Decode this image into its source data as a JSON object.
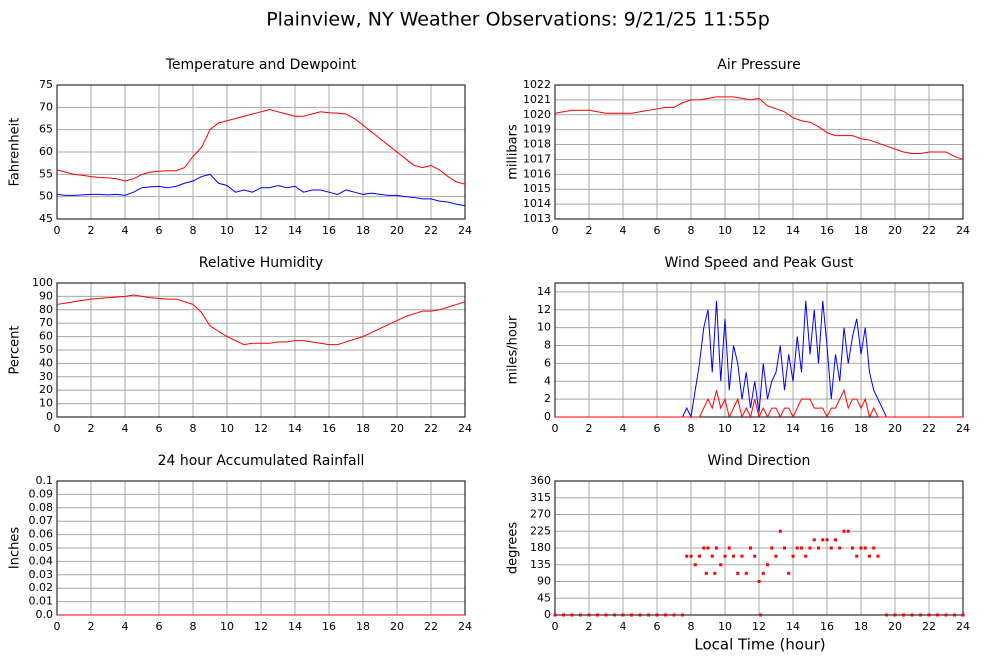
{
  "title": "Plainview, NY Weather Observations: 9/21/25 11:55p",
  "x_label": "Local Time (hour)",
  "chart_data": [
    {
      "type": "line",
      "title": "Temperature and Dewpoint",
      "y_label": "Fahrenheit",
      "x": [
        0,
        0.5,
        1,
        1.5,
        2,
        2.5,
        3,
        3.5,
        4,
        4.5,
        5,
        5.5,
        6,
        6.5,
        7,
        7.5,
        8,
        8.5,
        9,
        9.5,
        10,
        10.5,
        11,
        11.5,
        12,
        12.5,
        13,
        13.5,
        14,
        14.5,
        15,
        15.5,
        16,
        16.5,
        17,
        17.5,
        18,
        18.5,
        19,
        19.5,
        20,
        20.5,
        21,
        21.5,
        22,
        22.5,
        23,
        23.5,
        24
      ],
      "series": [
        {
          "color": "#ff0000",
          "values": [
            56,
            55.5,
            55,
            54.8,
            54.5,
            54.3,
            54.2,
            54,
            53.5,
            54,
            55,
            55.5,
            55.7,
            55.8,
            55.8,
            56.5,
            59,
            61,
            65,
            66.5,
            67,
            67.5,
            68,
            68.5,
            69,
            69.5,
            69,
            68.5,
            68,
            68,
            68.5,
            69,
            68.8,
            68.7,
            68.5,
            67.5,
            66,
            64.5,
            63,
            61.5,
            60,
            58.5,
            57,
            56.5,
            57,
            56,
            54.5,
            53.3,
            52.8
          ]
        },
        {
          "color": "#0000ff",
          "values": [
            50.5,
            50.3,
            50.3,
            50.4,
            50.5,
            50.5,
            50.4,
            50.5,
            50.3,
            51,
            52,
            52.2,
            52.3,
            52,
            52.3,
            53,
            53.5,
            54.5,
            55,
            53,
            52.5,
            51,
            51.5,
            51,
            52,
            52,
            52.5,
            52,
            52.3,
            51,
            51.5,
            51.5,
            51,
            50.5,
            51.5,
            51,
            50.5,
            50.8,
            50.5,
            50.3,
            50.3,
            50,
            49.8,
            49.5,
            49.5,
            49,
            48.8,
            48.3,
            48
          ]
        }
      ],
      "xlim": [
        0,
        24
      ],
      "xticks": [
        0,
        2,
        4,
        6,
        8,
        10,
        12,
        14,
        16,
        18,
        20,
        22,
        24
      ],
      "ylim": [
        45,
        75
      ],
      "yticks": [
        45,
        50,
        55,
        60,
        65,
        70,
        75
      ],
      "grid": true
    },
    {
      "type": "line",
      "title": "Air Pressure",
      "y_label": "millibars",
      "x": [
        0,
        0.5,
        1,
        1.5,
        2,
        2.5,
        3,
        3.5,
        4,
        4.5,
        5,
        5.5,
        6,
        6.5,
        7,
        7.5,
        8,
        8.5,
        9,
        9.5,
        10,
        10.5,
        11,
        11.5,
        12,
        12.5,
        13,
        13.5,
        14,
        14.5,
        15,
        15.5,
        16,
        16.5,
        17,
        17.5,
        18,
        18.5,
        19,
        19.5,
        20,
        20.5,
        21,
        21.5,
        22,
        22.5,
        23,
        23.5,
        24
      ],
      "series": [
        {
          "color": "#ff0000",
          "values": [
            1020.1,
            1020.2,
            1020.3,
            1020.3,
            1020.3,
            1020.2,
            1020.1,
            1020.1,
            1020.1,
            1020.1,
            1020.2,
            1020.3,
            1020.4,
            1020.5,
            1020.5,
            1020.8,
            1021,
            1021,
            1021.1,
            1021.2,
            1021.2,
            1021.2,
            1021.1,
            1021,
            1021.1,
            1020.6,
            1020.4,
            1020.2,
            1019.8,
            1019.6,
            1019.5,
            1019.2,
            1018.8,
            1018.6,
            1018.6,
            1018.6,
            1018.4,
            1018.3,
            1018.1,
            1017.9,
            1017.7,
            1017.5,
            1017.4,
            1017.4,
            1017.5,
            1017.5,
            1017.5,
            1017.2,
            1017
          ]
        }
      ],
      "xlim": [
        0,
        24
      ],
      "xticks": [
        0,
        2,
        4,
        6,
        8,
        10,
        12,
        14,
        16,
        18,
        20,
        22,
        24
      ],
      "ylim": [
        1013,
        1022
      ],
      "yticks": [
        1013,
        1014,
        1015,
        1016,
        1017,
        1018,
        1019,
        1020,
        1021,
        1022
      ],
      "grid": true
    },
    {
      "type": "line",
      "title": "Relative Humidity",
      "y_label": "Percent",
      "x": [
        0,
        0.5,
        1,
        1.5,
        2,
        2.5,
        3,
        3.5,
        4,
        4.5,
        5,
        5.5,
        6,
        6.5,
        7,
        7.5,
        8,
        8.5,
        9,
        9.5,
        10,
        10.5,
        11,
        11.5,
        12,
        12.5,
        13,
        13.5,
        14,
        14.5,
        15,
        15.5,
        16,
        16.5,
        17,
        17.5,
        18,
        18.5,
        19,
        19.5,
        20,
        20.5,
        21,
        21.5,
        22,
        22.5,
        23,
        23.5,
        24
      ],
      "series": [
        {
          "color": "#ff0000",
          "values": [
            84,
            85,
            86,
            87,
            88,
            88.5,
            89,
            89.5,
            90,
            91,
            90,
            89,
            88.5,
            88,
            88,
            86,
            84,
            78,
            68,
            64,
            60,
            57,
            54,
            55,
            55,
            55,
            56,
            56,
            57,
            57,
            56,
            55,
            54,
            54,
            56,
            58,
            60,
            63,
            66,
            69,
            72,
            75,
            77,
            79,
            79,
            80,
            82,
            84,
            86
          ]
        }
      ],
      "xlim": [
        0,
        24
      ],
      "xticks": [
        0,
        2,
        4,
        6,
        8,
        10,
        12,
        14,
        16,
        18,
        20,
        22,
        24
      ],
      "ylim": [
        0,
        100
      ],
      "yticks": [
        0,
        10,
        20,
        30,
        40,
        50,
        60,
        70,
        80,
        90,
        100
      ],
      "grid": true
    },
    {
      "type": "line",
      "title": "Wind Speed and Peak Gust",
      "y_label": "miles/hour",
      "x": [
        0,
        7.5,
        7.75,
        8,
        8.25,
        8.5,
        8.75,
        9,
        9.25,
        9.5,
        9.75,
        10,
        10.25,
        10.5,
        10.75,
        11,
        11.25,
        11.5,
        11.75,
        12,
        12.25,
        12.5,
        12.75,
        13,
        13.25,
        13.5,
        13.75,
        14,
        14.25,
        14.5,
        14.75,
        15,
        15.25,
        15.5,
        15.75,
        16,
        16.25,
        16.5,
        16.75,
        17,
        17.25,
        17.5,
        17.75,
        18,
        18.25,
        18.5,
        18.75,
        19,
        19.25,
        19.5,
        24
      ],
      "series": [
        {
          "color": "#0000ff",
          "values": [
            0,
            0,
            1,
            0,
            3,
            6,
            10,
            12,
            5,
            13,
            4,
            11,
            3,
            8,
            6,
            2,
            5,
            1,
            4,
            0.5,
            6,
            2,
            4,
            5,
            8,
            3,
            7,
            4,
            9,
            5,
            13,
            7,
            12,
            6,
            13,
            8,
            2,
            7,
            4,
            10,
            6,
            9,
            11,
            7,
            10,
            5,
            3,
            2,
            1,
            0,
            0
          ]
        },
        {
          "color": "#ff0000",
          "values": [
            0,
            0,
            0,
            0,
            0,
            0,
            1,
            2,
            1,
            3,
            1,
            2,
            0,
            1,
            2,
            0,
            1,
            0,
            2,
            0,
            1,
            0,
            1,
            1,
            0,
            1,
            1,
            0,
            1,
            2,
            2,
            2,
            1,
            1,
            1,
            0,
            1,
            1,
            2,
            3,
            1,
            2,
            2,
            1,
            2,
            0,
            1,
            0,
            0,
            0,
            0
          ]
        }
      ],
      "xlim": [
        0,
        24
      ],
      "xticks": [
        0,
        2,
        4,
        6,
        8,
        10,
        12,
        14,
        16,
        18,
        20,
        22,
        24
      ],
      "ylim": [
        0,
        15
      ],
      "yticks": [
        0,
        2,
        4,
        6,
        8,
        10,
        12,
        14
      ],
      "grid": true
    },
    {
      "type": "line",
      "title": "24 hour Accumulated Rainfall",
      "y_label": "Inches",
      "x": [
        0,
        24
      ],
      "series": [
        {
          "color": "#ff0000",
          "values": [
            0,
            0
          ]
        }
      ],
      "xlim": [
        0,
        24
      ],
      "xticks": [
        0,
        2,
        4,
        6,
        8,
        10,
        12,
        14,
        16,
        18,
        20,
        22,
        24
      ],
      "ylim": [
        0,
        0.1
      ],
      "yticks": [
        {
          "value": 0,
          "label": "0.0"
        },
        0.01,
        0.02,
        0.03,
        0.04,
        0.05,
        0.06,
        0.07,
        0.08,
        0.09,
        0.1
      ],
      "grid": true
    },
    {
      "type": "scatter",
      "title": "Wind Direction",
      "y_label": "degrees",
      "x": [
        0,
        0.5,
        1,
        1.5,
        2,
        2.5,
        3,
        3.5,
        4,
        4.5,
        5,
        5.5,
        6,
        6.5,
        7,
        7.5,
        7.75,
        8,
        8.25,
        8.5,
        8.75,
        8.9,
        9,
        9.25,
        9.4,
        9.5,
        9.75,
        10,
        10.25,
        10.5,
        10.75,
        11,
        11.25,
        11.5,
        11.75,
        12,
        12.1,
        12.25,
        12.5,
        12.75,
        13,
        13.25,
        13.5,
        13.75,
        14,
        14.25,
        14.5,
        14.75,
        15,
        15.25,
        15.5,
        15.75,
        16,
        16.25,
        16.5,
        16.75,
        17,
        17.25,
        17.5,
        17.75,
        18,
        18.25,
        18.5,
        18.75,
        19,
        19.5,
        20,
        20.5,
        21,
        21.5,
        22,
        22.5,
        23,
        23.5,
        24
      ],
      "series": [
        {
          "color": "#ff0000",
          "values": [
            0,
            0,
            0,
            0,
            0,
            0,
            0,
            0,
            0,
            0,
            0,
            0,
            0,
            0,
            0,
            0,
            158,
            158,
            135,
            158,
            180,
            112,
            180,
            158,
            112,
            180,
            135,
            158,
            180,
            158,
            112,
            158,
            112,
            180,
            158,
            90,
            0,
            112,
            135,
            180,
            158,
            225,
            180,
            112,
            158,
            180,
            180,
            158,
            180,
            202,
            180,
            202,
            202,
            180,
            202,
            180,
            225,
            225,
            180,
            158,
            180,
            180,
            158,
            180,
            158,
            0,
            0,
            0,
            0,
            0,
            0,
            0,
            0,
            0,
            0
          ]
        }
      ],
      "xlim": [
        0,
        24
      ],
      "xticks": [
        0,
        2,
        4,
        6,
        8,
        10,
        12,
        14,
        16,
        18,
        20,
        22,
        24
      ],
      "ylim": [
        0,
        360
      ],
      "yticks": [
        0,
        45,
        90,
        135,
        180,
        225,
        270,
        315,
        360
      ],
      "grid": true
    }
  ]
}
